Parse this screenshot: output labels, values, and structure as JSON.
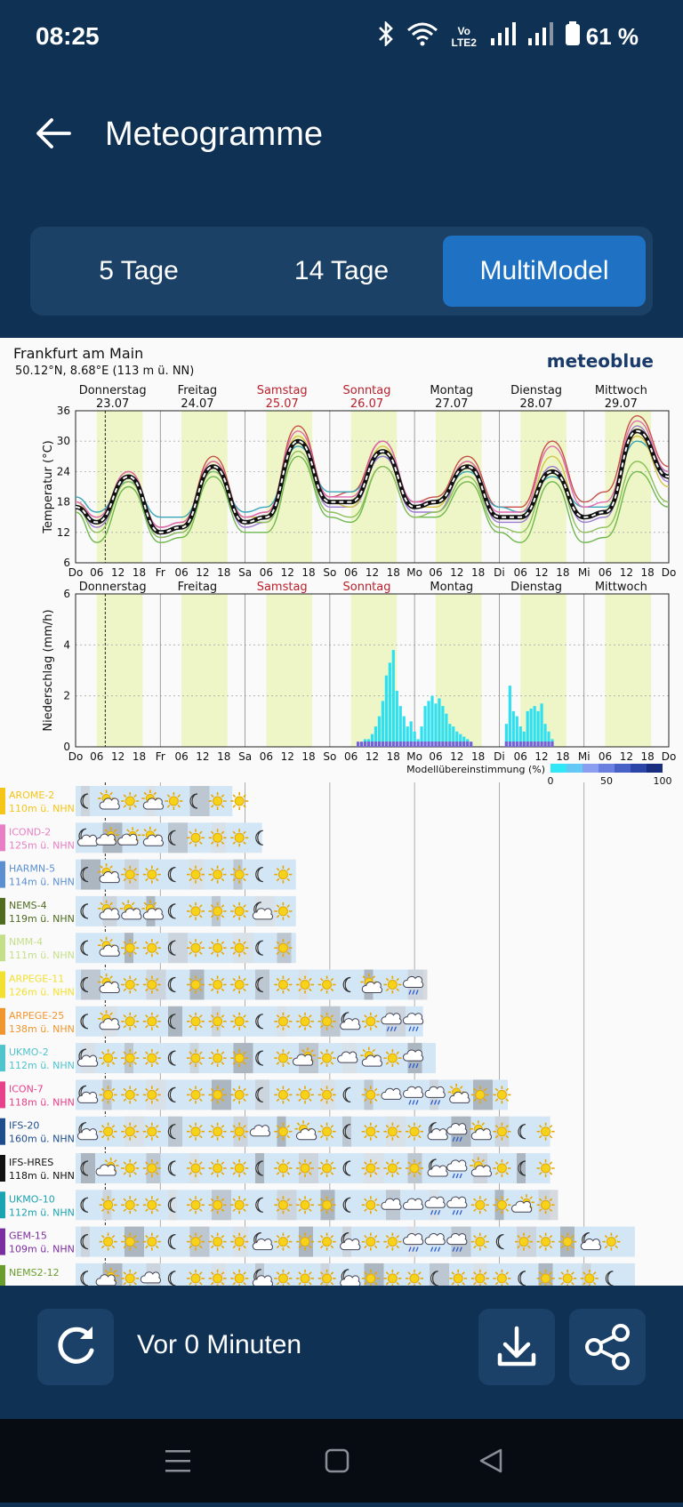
{
  "status": {
    "time": "08:25",
    "battery": "61 %",
    "network": "Vo LTE2"
  },
  "appbar": {
    "title": "Meteogramme"
  },
  "tabs": [
    {
      "label": "5 Tage",
      "active": false
    },
    {
      "label": "14 Tage",
      "active": false
    },
    {
      "label": "MultiModel",
      "active": true
    }
  ],
  "meteogram": {
    "location": "Frankfurt am Main",
    "coords": "50.12°N, 8.68°E (113 m ü. NN)",
    "brand": "meteoblue",
    "days": [
      {
        "name": "Donnerstag",
        "date": "23.07",
        "weekend": false
      },
      {
        "name": "Freitag",
        "date": "24.07",
        "weekend": false
      },
      {
        "name": "Samstag",
        "date": "25.07",
        "weekend": true
      },
      {
        "name": "Sonntag",
        "date": "26.07",
        "weekend": true
      },
      {
        "name": "Montag",
        "date": "27.07",
        "weekend": false
      },
      {
        "name": "Dienstag",
        "date": "28.07",
        "weekend": false
      },
      {
        "name": "Mittwoch",
        "date": "29.07",
        "weekend": false
      }
    ],
    "x_ticks": [
      "Do",
      "06",
      "12",
      "18",
      "Fr",
      "06",
      "12",
      "18",
      "Sa",
      "06",
      "12",
      "18",
      "So",
      "06",
      "12",
      "18",
      "Mo",
      "06",
      "12",
      "18",
      "Di",
      "06",
      "12",
      "18",
      "Mi",
      "06",
      "12",
      "18",
      "Do"
    ],
    "legend_label": "Modellübereinstimmung (%)",
    "legend_ticks": [
      "0",
      "50",
      "100"
    ],
    "models": [
      {
        "name": "AROME-2",
        "alt": "110m ü. NHN",
        "color": "#f5c518",
        "days": 1.85,
        "icons": [
          "moon",
          "sun-cloud",
          "sun",
          "sun-cloud",
          "sun",
          "moon",
          "sun",
          "sun"
        ]
      },
      {
        "name": "ICOND-2",
        "alt": "125m ü. NHN",
        "color": "#e87fc4",
        "days": 2.2,
        "icons": [
          "moon-cloud",
          "cloud-sun",
          "cloud-sun",
          "sun-cloud",
          "moon",
          "sun",
          "sun",
          "sun",
          "moon"
        ]
      },
      {
        "name": "HARMN-5",
        "alt": "114m ü. NHN",
        "color": "#5b8fd0",
        "days": 2.6,
        "icons": [
          "moon",
          "sun-cloud",
          "sun",
          "sun",
          "moon",
          "sun",
          "sun",
          "sun",
          "moon",
          "sun"
        ]
      },
      {
        "name": "NEMS-4",
        "alt": "119m ü. NHN",
        "color": "#4e6b1f",
        "days": 2.6,
        "icons": [
          "moon",
          "sun-cloud",
          "sun-cloud",
          "sun-cloud",
          "moon",
          "sun",
          "sun",
          "sun",
          "moon-cloud",
          "sun"
        ]
      },
      {
        "name": "NMM-4",
        "alt": "111m ü. NHN",
        "color": "#c4df8a",
        "days": 2.6,
        "icons": [
          "moon",
          "sun-cloud",
          "sun",
          "sun",
          "moon",
          "sun",
          "sun",
          "sun",
          "moon",
          "sun"
        ]
      },
      {
        "name": "ARPEGE-11",
        "alt": "126m ü. NHN",
        "color": "#f2e030",
        "days": 4.1,
        "icons": [
          "moon",
          "sun-cloud",
          "sun",
          "sun",
          "moon",
          "sun",
          "sun",
          "sun",
          "moon",
          "sun",
          "sun",
          "sun",
          "moon",
          "sun-cloud",
          "sun",
          "rain"
        ]
      },
      {
        "name": "ARPEGE-25",
        "alt": "138m ü. NHN",
        "color": "#f0962f",
        "days": 4.1,
        "icons": [
          "moon",
          "sun-cloud",
          "sun",
          "sun",
          "moon",
          "sun",
          "sun",
          "sun",
          "moon",
          "sun",
          "sun",
          "sun",
          "moon-cloud",
          "sun",
          "rain",
          "rain"
        ]
      },
      {
        "name": "UKMO-2",
        "alt": "112m ü. NHN",
        "color": "#4fc4cc",
        "days": 4.25,
        "icons": [
          "moon-cloud",
          "sun",
          "sun",
          "sun",
          "moon",
          "sun",
          "sun",
          "sun",
          "moon",
          "sun",
          "cloud-sun",
          "sun",
          "cloud",
          "sun-cloud",
          "sun",
          "rain"
        ]
      },
      {
        "name": "ICON-7",
        "alt": "118m ü. NHN",
        "color": "#e8418b",
        "days": 5.1,
        "icons": [
          "moon-cloud",
          "sun",
          "sun",
          "sun",
          "moon",
          "sun",
          "sun",
          "sun",
          "moon",
          "sun",
          "sun",
          "sun",
          "moon",
          "sun",
          "cloud",
          "rain",
          "rain",
          "sun-cloud",
          "sun",
          "sun"
        ]
      },
      {
        "name": "IFS-20",
        "alt": "160m ü. NHN",
        "color": "#1e4d8c",
        "days": 5.6,
        "icons": [
          "moon-cloud",
          "sun",
          "sun",
          "sun",
          "moon",
          "sun",
          "sun",
          "sun",
          "cloud",
          "sun",
          "sun-cloud",
          "sun",
          "moon",
          "sun",
          "sun",
          "sun",
          "moon-cloud",
          "rain",
          "sun-cloud",
          "sun",
          "moon",
          "sun"
        ]
      },
      {
        "name": "IFS-HRES",
        "alt": "118m ü. NHN",
        "color": "#111111",
        "days": 5.6,
        "icons": [
          "moon",
          "cloud-sun",
          "sun",
          "sun",
          "moon",
          "sun",
          "sun",
          "sun",
          "moon",
          "sun",
          "sun",
          "sun",
          "moon",
          "sun",
          "sun",
          "sun",
          "moon-cloud",
          "rain",
          "sun-cloud",
          "sun",
          "moon",
          "sun"
        ]
      },
      {
        "name": "UKMO-10",
        "alt": "112m ü. NHN",
        "color": "#1aa3b0",
        "days": 5.6,
        "icons": [
          "moon",
          "sun",
          "sun",
          "sun",
          "moon",
          "sun",
          "sun",
          "sun",
          "moon",
          "sun",
          "sun",
          "sun",
          "moon",
          "sun",
          "cloud",
          "cloud",
          "rain",
          "rain",
          "sun",
          "sun",
          "cloud-sun",
          "sun"
        ]
      },
      {
        "name": "GEM-15",
        "alt": "109m ü. NHN",
        "color": "#7b2ea0",
        "days": 6.6,
        "icons": [
          "moon",
          "sun",
          "sun",
          "sun",
          "moon",
          "sun",
          "sun",
          "sun",
          "moon-cloud",
          "sun",
          "sun",
          "sun",
          "moon-cloud",
          "sun",
          "sun",
          "rain",
          "rain",
          "rain",
          "sun",
          "moon",
          "sun",
          "sun",
          "sun",
          "moon-cloud",
          "sun"
        ]
      },
      {
        "name": "NEMS2-12",
        "alt": "",
        "color": "#6a9d2e",
        "days": 6.6,
        "icons": [
          "moon",
          "cloud-sun",
          "sun",
          "cloud",
          "moon",
          "sun",
          "sun",
          "sun",
          "moon-cloud",
          "sun",
          "sun",
          "sun",
          "moon-cloud",
          "sun",
          "sun",
          "sun",
          "moon",
          "sun",
          "sun",
          "sun",
          "moon",
          "sun",
          "sun",
          "sun",
          "moon"
        ]
      }
    ]
  },
  "temp_chart": {
    "type": "line",
    "ylabel": "Temperatur (°C)",
    "ylim": [
      6,
      36
    ],
    "yticks": [
      6,
      12,
      18,
      24,
      30,
      36
    ],
    "x_unit": "hours since Do 00",
    "series": [
      {
        "role": "consensus",
        "color": "#111111",
        "x": [
          0,
          6,
          15,
          24,
          30,
          39,
          48,
          54,
          63,
          72,
          78,
          87,
          96,
          102,
          111,
          120,
          126,
          135,
          144,
          150,
          159,
          168
        ],
        "values": [
          17,
          14,
          23,
          12,
          13,
          25,
          14,
          15,
          30,
          18,
          18,
          28,
          17,
          18,
          25,
          15,
          15,
          24,
          15,
          16,
          32,
          23
        ]
      },
      {
        "role": "model",
        "color": "#c6504a",
        "x": [
          0,
          6,
          15,
          24,
          30,
          39,
          48,
          54,
          63,
          72,
          78,
          87,
          96,
          102,
          111,
          120,
          126,
          135,
          144,
          150,
          159,
          168
        ],
        "values": [
          18,
          15,
          24,
          13,
          14,
          27,
          15,
          16,
          33,
          19,
          20,
          30,
          18,
          19,
          27,
          17,
          17,
          30,
          18,
          20,
          35,
          25
        ]
      },
      {
        "role": "model",
        "color": "#3aa5b8",
        "x": [
          0,
          6,
          15,
          24,
          30,
          39,
          48,
          54,
          63,
          72,
          78,
          87,
          96,
          102,
          111,
          120,
          126,
          135,
          144,
          150,
          159,
          168
        ],
        "values": [
          19,
          16,
          22,
          15,
          15,
          24,
          16,
          17,
          29,
          20,
          20,
          27,
          18,
          18,
          24,
          17,
          16,
          23,
          17,
          17,
          30,
          24
        ]
      },
      {
        "role": "model",
        "color": "#6eb84c",
        "x": [
          0,
          6,
          15,
          24,
          30,
          39,
          48,
          54,
          63,
          72,
          78,
          87,
          96,
          102,
          111,
          120,
          126,
          135,
          144,
          150,
          159,
          168
        ],
        "values": [
          16,
          10,
          21,
          10,
          11,
          23,
          12,
          12,
          27,
          15,
          14,
          25,
          15,
          15,
          22,
          12,
          10,
          22,
          10,
          11,
          24,
          17
        ]
      },
      {
        "role": "model",
        "color": "#9c7bd0",
        "x": [
          0,
          6,
          15,
          24,
          30,
          39,
          48,
          54,
          63,
          72,
          78,
          87,
          96,
          102,
          111,
          120,
          126,
          135,
          144,
          150,
          159,
          168
        ],
        "values": [
          17,
          13,
          22,
          11,
          12,
          25,
          13,
          14,
          30,
          17,
          17,
          27,
          16,
          16,
          25,
          14,
          14,
          25,
          14,
          15,
          33,
          22
        ]
      },
      {
        "role": "model",
        "color": "#d4c44a",
        "x": [
          0,
          6,
          15,
          24,
          30,
          39,
          48,
          54,
          63,
          72,
          78,
          87,
          96,
          102,
          111,
          120,
          126,
          135,
          144,
          150,
          159,
          168
        ],
        "values": [
          18,
          14,
          23,
          12,
          13,
          26,
          15,
          15,
          31,
          18,
          17,
          29,
          17,
          17,
          26,
          15,
          15,
          27,
          15,
          16,
          31,
          21
        ]
      },
      {
        "role": "model",
        "color": "#8cc05a",
        "x": [
          0,
          6,
          15,
          24,
          30,
          39,
          48,
          54,
          63,
          72,
          78,
          87,
          96,
          102,
          111,
          120,
          126,
          135,
          144,
          150,
          159,
          168
        ],
        "values": [
          17,
          12,
          22,
          11,
          12,
          24,
          14,
          14,
          28,
          16,
          15,
          25,
          15,
          16,
          23,
          13,
          12,
          24,
          12,
          13,
          26,
          18
        ]
      },
      {
        "role": "model",
        "color": "#e06ab0",
        "x": [
          0,
          6,
          15,
          24,
          30,
          39,
          48,
          54,
          63,
          72,
          78,
          87,
          96,
          102,
          111,
          120,
          126,
          135,
          144,
          150,
          159,
          168
        ],
        "values": [
          18,
          15,
          24,
          13,
          14,
          26,
          15,
          16,
          32,
          19,
          19,
          30,
          18,
          18,
          26,
          16,
          16,
          29,
          17,
          18,
          34,
          24
        ]
      }
    ]
  },
  "precip_chart": {
    "type": "bar",
    "ylabel": "Niederschlag (mm/h)",
    "ylim": [
      0,
      6
    ],
    "yticks": [
      0,
      2,
      4,
      6
    ],
    "x_unit": "hours since Do 00",
    "bars": [
      {
        "x": 80,
        "v": 0.2
      },
      {
        "x": 81,
        "v": 0.2
      },
      {
        "x": 82,
        "v": 0.3
      },
      {
        "x": 83,
        "v": 0.3
      },
      {
        "x": 84,
        "v": 0.5
      },
      {
        "x": 85,
        "v": 0.8
      },
      {
        "x": 86,
        "v": 1.2
      },
      {
        "x": 87,
        "v": 1.8
      },
      {
        "x": 88,
        "v": 2.8
      },
      {
        "x": 89,
        "v": 3.3
      },
      {
        "x": 90,
        "v": 3.8
      },
      {
        "x": 91,
        "v": 2.2
      },
      {
        "x": 92,
        "v": 1.6
      },
      {
        "x": 93,
        "v": 1.2
      },
      {
        "x": 94,
        "v": 0.8
      },
      {
        "x": 95,
        "v": 1.0
      },
      {
        "x": 96,
        "v": 0.6
      },
      {
        "x": 97,
        "v": 0.3
      },
      {
        "x": 98,
        "v": 0.8
      },
      {
        "x": 99,
        "v": 1.6
      },
      {
        "x": 100,
        "v": 1.8
      },
      {
        "x": 101,
        "v": 2.0
      },
      {
        "x": 102,
        "v": 1.7
      },
      {
        "x": 103,
        "v": 1.9
      },
      {
        "x": 104,
        "v": 1.6
      },
      {
        "x": 105,
        "v": 1.3
      },
      {
        "x": 106,
        "v": 0.9
      },
      {
        "x": 107,
        "v": 0.8
      },
      {
        "x": 108,
        "v": 0.6
      },
      {
        "x": 109,
        "v": 0.5
      },
      {
        "x": 110,
        "v": 0.4
      },
      {
        "x": 111,
        "v": 0.3
      },
      {
        "x": 112,
        "v": 0.2
      },
      {
        "x": 122,
        "v": 0.9
      },
      {
        "x": 123,
        "v": 2.4
      },
      {
        "x": 124,
        "v": 1.4
      },
      {
        "x": 125,
        "v": 1.2
      },
      {
        "x": 126,
        "v": 0.8
      },
      {
        "x": 127,
        "v": 0.6
      },
      {
        "x": 128,
        "v": 1.4
      },
      {
        "x": 129,
        "v": 1.5
      },
      {
        "x": 130,
        "v": 1.6
      },
      {
        "x": 131,
        "v": 1.4
      },
      {
        "x": 132,
        "v": 1.7
      },
      {
        "x": 133,
        "v": 0.9
      },
      {
        "x": 134,
        "v": 0.6
      },
      {
        "x": 135,
        "v": 0.3
      }
    ]
  },
  "bottom": {
    "updated": "Vor 0 Minuten"
  }
}
